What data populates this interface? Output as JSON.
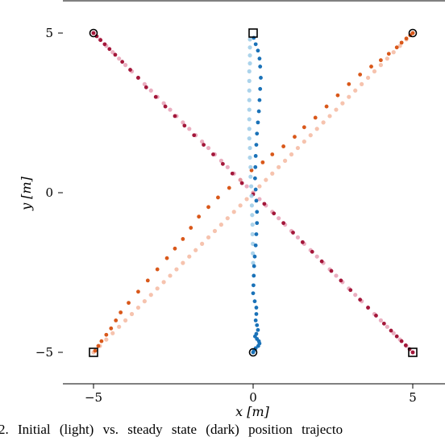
{
  "chart_data": {
    "type": "scatter",
    "xlabel": "x [m]",
    "ylabel": "y [m]",
    "xlim": [
      -6.0,
      6.0
    ],
    "ylim": [
      -6.0,
      6.0
    ],
    "xticks": [
      "−5",
      "0",
      "5"
    ],
    "yticks": [
      "5",
      "0",
      "−5"
    ],
    "grid": false,
    "series": [
      {
        "role": "initial (light)",
        "color": "#f4b8a0",
        "x": [
          -5.0,
          -4.8,
          -4.6,
          -4.4,
          -4.2,
          -4.0,
          -3.8,
          -3.6,
          -3.4,
          -3.2,
          -3.0,
          -2.8,
          -2.6,
          -2.4,
          -2.2,
          -2.0,
          -1.8,
          -1.6,
          -1.4,
          -1.2,
          -1.0,
          -0.8,
          -0.6,
          -0.4,
          -0.2,
          0.0,
          0.2,
          0.4,
          0.6,
          0.8,
          1.0,
          1.2,
          1.4,
          1.6,
          1.8,
          2.0,
          2.2,
          2.4,
          2.6,
          2.8,
          3.0,
          3.2,
          3.4,
          3.6,
          3.8,
          4.0,
          4.2,
          4.4,
          4.6,
          4.8,
          5.0
        ],
        "y": [
          -5.0,
          -4.8,
          -4.6,
          -4.4,
          -4.2,
          -4.0,
          -3.8,
          -3.6,
          -3.4,
          -3.2,
          -3.0,
          -2.8,
          -2.6,
          -2.4,
          -2.2,
          -2.0,
          -1.8,
          -1.6,
          -1.4,
          -1.2,
          -1.0,
          -0.8,
          -0.6,
          -0.4,
          -0.2,
          0.0,
          0.2,
          0.4,
          0.6,
          0.8,
          1.0,
          1.2,
          1.4,
          1.6,
          1.8,
          2.0,
          2.2,
          2.4,
          2.6,
          2.8,
          3.0,
          3.2,
          3.4,
          3.6,
          3.8,
          4.0,
          4.2,
          4.4,
          4.6,
          4.8,
          5.0
        ]
      },
      {
        "role": "steady state (dark)",
        "color": "#d9581a",
        "x": [
          -4.95,
          -4.85,
          -4.75,
          -4.6,
          -4.45,
          -4.3,
          -4.15,
          -3.9,
          -3.6,
          -3.3,
          -3.0,
          -2.7,
          -2.45,
          -2.2,
          -1.95,
          -1.7,
          -1.4,
          -1.1,
          -0.75,
          -0.4,
          -0.05,
          0.3,
          0.6,
          0.95,
          1.3,
          1.6,
          1.95,
          2.3,
          2.65,
          3.0,
          3.35,
          3.7,
          4.0,
          4.25,
          4.5,
          4.65,
          4.8,
          4.92,
          5.0
        ],
        "y": [
          -4.95,
          -4.8,
          -4.65,
          -4.45,
          -4.25,
          -4.0,
          -3.75,
          -3.45,
          -3.1,
          -2.75,
          -2.4,
          -2.05,
          -1.75,
          -1.45,
          -1.1,
          -0.75,
          -0.45,
          -0.15,
          0.15,
          0.4,
          0.7,
          0.95,
          1.2,
          1.45,
          1.75,
          2.05,
          2.35,
          2.7,
          3.05,
          3.4,
          3.7,
          3.95,
          4.15,
          4.35,
          4.55,
          4.7,
          4.83,
          4.93,
          5.0
        ]
      },
      {
        "role": "initial (light)",
        "color": "#e6a0b5",
        "x": [
          -5.0,
          -4.8,
          -4.6,
          -4.4,
          -4.2,
          -4.0,
          -3.8,
          -3.6,
          -3.4,
          -3.2,
          -3.0,
          -2.8,
          -2.6,
          -2.4,
          -2.2,
          -2.0,
          -1.8,
          -1.6,
          -1.4,
          -1.2,
          -1.0,
          -0.8,
          -0.6,
          -0.4,
          -0.2,
          0.0,
          0.2,
          0.4,
          0.6,
          0.8,
          1.0,
          1.2,
          1.4,
          1.6,
          1.8,
          2.0,
          2.2,
          2.4,
          2.6,
          2.8,
          3.0,
          3.2,
          3.4,
          3.6,
          3.8,
          4.0,
          4.2,
          4.4,
          4.6,
          4.8,
          5.0
        ],
        "y": [
          5.0,
          4.8,
          4.6,
          4.4,
          4.2,
          4.0,
          3.8,
          3.6,
          3.4,
          3.2,
          3.0,
          2.8,
          2.6,
          2.4,
          2.2,
          2.0,
          1.8,
          1.6,
          1.4,
          1.2,
          1.0,
          0.8,
          0.6,
          0.4,
          0.2,
          0.0,
          -0.2,
          -0.4,
          -0.6,
          -0.8,
          -1.0,
          -1.2,
          -1.4,
          -1.6,
          -1.8,
          -2.0,
          -2.2,
          -2.4,
          -2.6,
          -2.8,
          -3.0,
          -3.2,
          -3.4,
          -3.6,
          -3.8,
          -4.0,
          -4.2,
          -4.4,
          -4.6,
          -4.8,
          -5.0
        ]
      },
      {
        "role": "steady state (dark)",
        "color": "#a3173a",
        "x": [
          -5.0,
          -4.9,
          -4.78,
          -4.65,
          -4.5,
          -4.32,
          -4.1,
          -3.85,
          -3.6,
          -3.35,
          -3.05,
          -2.75,
          -2.45,
          -2.15,
          -1.85,
          -1.55,
          -1.25,
          -0.95,
          -0.65,
          -0.35,
          0.0,
          0.35,
          0.65,
          0.95,
          1.25,
          1.55,
          1.85,
          2.15,
          2.45,
          2.75,
          3.05,
          3.35,
          3.6,
          3.85,
          4.1,
          4.32,
          4.5,
          4.65,
          4.78,
          4.9,
          5.0
        ],
        "y": [
          5.0,
          4.9,
          4.78,
          4.65,
          4.5,
          4.32,
          4.1,
          3.85,
          3.6,
          3.3,
          3.0,
          2.7,
          2.4,
          2.1,
          1.8,
          1.5,
          1.2,
          0.9,
          0.6,
          0.3,
          -0.05,
          -0.35,
          -0.65,
          -0.95,
          -1.25,
          -1.55,
          -1.85,
          -2.15,
          -2.45,
          -2.75,
          -3.05,
          -3.35,
          -3.6,
          -3.85,
          -4.1,
          -4.32,
          -4.5,
          -4.65,
          -4.78,
          -4.9,
          -5.0
        ]
      },
      {
        "role": "initial (light)",
        "color": "#9ccbe8",
        "x": [
          -0.1,
          -0.1,
          -0.1,
          -0.1,
          -0.12,
          -0.12,
          -0.12,
          -0.12,
          -0.12,
          -0.12,
          -0.12,
          -0.12,
          -0.1,
          -0.1,
          -0.08,
          -0.08,
          -0.06,
          -0.05,
          -0.04,
          -0.03,
          -0.02,
          -0.02,
          -0.01,
          -0.01,
          0.0
        ],
        "y": [
          4.8,
          4.55,
          4.3,
          4.05,
          3.8,
          3.5,
          3.2,
          2.9,
          2.6,
          2.3,
          2.0,
          1.7,
          1.4,
          1.1,
          0.8,
          0.5,
          0.2,
          -0.1,
          -0.4,
          -0.7,
          -1.0,
          -1.3,
          -1.6,
          -1.9,
          -2.2
        ]
      },
      {
        "role": "steady state (dark)",
        "color": "#1a72b8",
        "x": [
          0.02,
          0.08,
          0.15,
          0.2,
          0.22,
          0.24,
          0.22,
          0.2,
          0.18,
          0.15,
          0.12,
          0.1,
          0.08,
          0.07,
          0.06,
          0.08,
          0.1,
          0.12,
          0.12,
          0.1,
          0.08,
          0.05,
          0.03,
          0.02,
          0.01,
          0.0,
          0.05,
          0.1,
          0.1,
          0.08,
          0.12,
          0.15,
          0.1,
          0.06,
          0.12,
          0.18,
          0.2,
          0.16,
          0.08,
          0.03,
          0.0
        ],
        "y": [
          4.85,
          4.65,
          4.45,
          4.2,
          3.95,
          3.6,
          3.25,
          2.9,
          2.55,
          2.2,
          1.85,
          1.5,
          1.15,
          0.8,
          0.45,
          0.1,
          -0.25,
          -0.6,
          -0.95,
          -1.3,
          -1.65,
          -2.0,
          -2.3,
          -2.6,
          -2.9,
          -3.15,
          -3.4,
          -3.6,
          -3.8,
          -4.0,
          -4.15,
          -4.3,
          -4.42,
          -4.5,
          -4.58,
          -4.65,
          -4.72,
          -4.8,
          -4.87,
          -4.93,
          -5.0
        ]
      }
    ],
    "markers": {
      "start": [
        [
          0,
          5
        ],
        [
          5,
          -5
        ],
        [
          -5,
          -5
        ]
      ],
      "goal": [
        [
          -5,
          5
        ],
        [
          5,
          5
        ],
        [
          0,
          -5
        ]
      ]
    }
  },
  "caption": "2.    Initial (light) vs. steady state (dark) position trajecto"
}
